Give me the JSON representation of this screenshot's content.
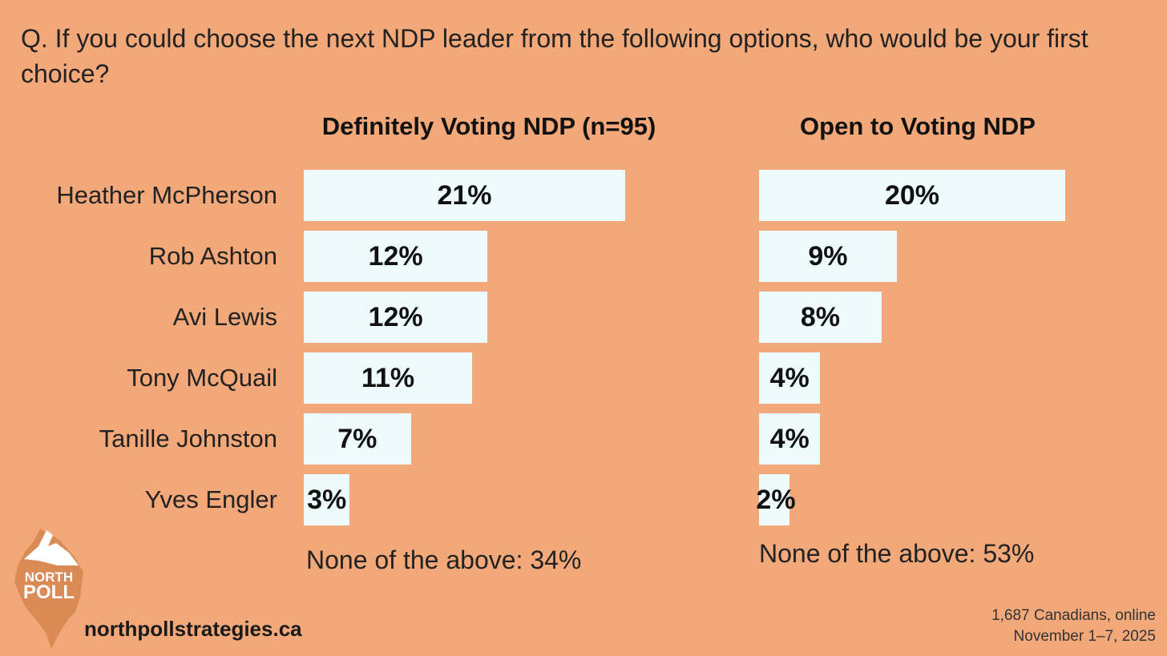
{
  "question": "Q. If you could choose the next NDP leader from the following options, who would be your first choice?",
  "chart_data": {
    "type": "bar",
    "orientation": "horizontal",
    "title": "Q. If you could choose the next NDP leader from the following options, who would be your first choice?",
    "categories": [
      "Heather McPherson",
      "Rob Ashton",
      "Avi Lewis",
      "Tony McQuail",
      "Tanille Johnston",
      "Yves Engler"
    ],
    "series": [
      {
        "name": "Definitely Voting NDP (n=95)",
        "values": [
          21,
          12,
          12,
          11,
          7,
          3
        ],
        "labels": [
          "21%",
          "12%",
          "12%",
          "11%",
          "7%",
          "3%"
        ],
        "note": "None of the above: 34%"
      },
      {
        "name": "Open to Voting NDP",
        "values": [
          20,
          9,
          8,
          4,
          4,
          2
        ],
        "labels": [
          "20%",
          "9%",
          "8%",
          "4%",
          "4%",
          "2%"
        ],
        "note": "None of the above: 53%"
      }
    ],
    "unit": "%",
    "xlim": [
      0,
      21
    ]
  },
  "website": "northpollstrategies.ca",
  "footnote": {
    "line1": "1,687 Canadians, online",
    "line2": "November 1–7, 2025"
  },
  "logo": {
    "line1": "NORTH",
    "line2": "POLL"
  },
  "colors": {
    "background": "#F2A878",
    "bar": "#EEFBFC",
    "logo": "#D98A55"
  }
}
